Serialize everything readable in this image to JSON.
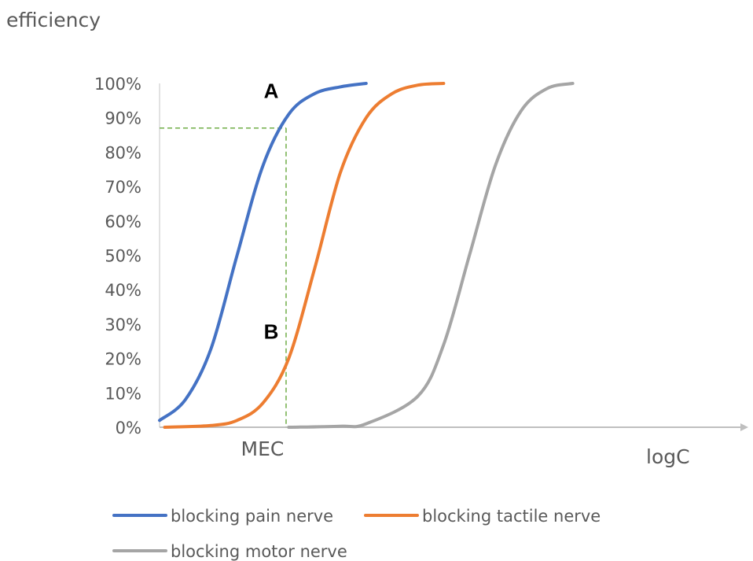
{
  "chart_data": {
    "type": "line",
    "ylabel": "efficiency",
    "xlabel": "logC",
    "yticks": [
      "0%",
      "10%",
      "20%",
      "30%",
      "40%",
      "50%",
      "60%",
      "70%",
      "80%",
      "90%",
      "100%"
    ],
    "ylim": [
      0,
      100
    ],
    "xlim": [
      0,
      10
    ],
    "grid": false,
    "legend_position": "bottom",
    "series": [
      {
        "name": "blocking pain nerve",
        "color": "#4472C4",
        "x": [
          0,
          0.5,
          1.0,
          1.5,
          2.0,
          2.5,
          3.0,
          3.5,
          4.0
        ],
        "y": [
          2,
          8,
          23,
          50,
          76,
          91,
          97,
          99,
          100
        ]
      },
      {
        "name": "blocking tactile nerve",
        "color": "#ED7D31",
        "x": [
          0.1,
          1.0,
          1.5,
          2.0,
          2.5,
          3.0,
          3.5,
          4.0,
          4.5,
          5.0,
          5.5
        ],
        "y": [
          0,
          0.5,
          2,
          7,
          20,
          46,
          74,
          90,
          97,
          99.5,
          100
        ]
      },
      {
        "name": "blocking motor nerve",
        "color": "#A5A5A5",
        "x": [
          2.5,
          3.5,
          4.0,
          5.0,
          5.5,
          6.0,
          6.5,
          7.0,
          7.5,
          8.0
        ],
        "y": [
          0,
          0.3,
          1,
          9,
          24,
          50,
          76,
          92,
          98.5,
          100
        ]
      }
    ],
    "annotations": [
      {
        "label": "A",
        "x": 2.1,
        "y": 98
      },
      {
        "label": "B",
        "x": 2.1,
        "y": 28
      },
      {
        "label": "MEC",
        "x": 2.45,
        "y": -5
      }
    ],
    "reference": {
      "x": 2.45,
      "y": 87
    }
  }
}
